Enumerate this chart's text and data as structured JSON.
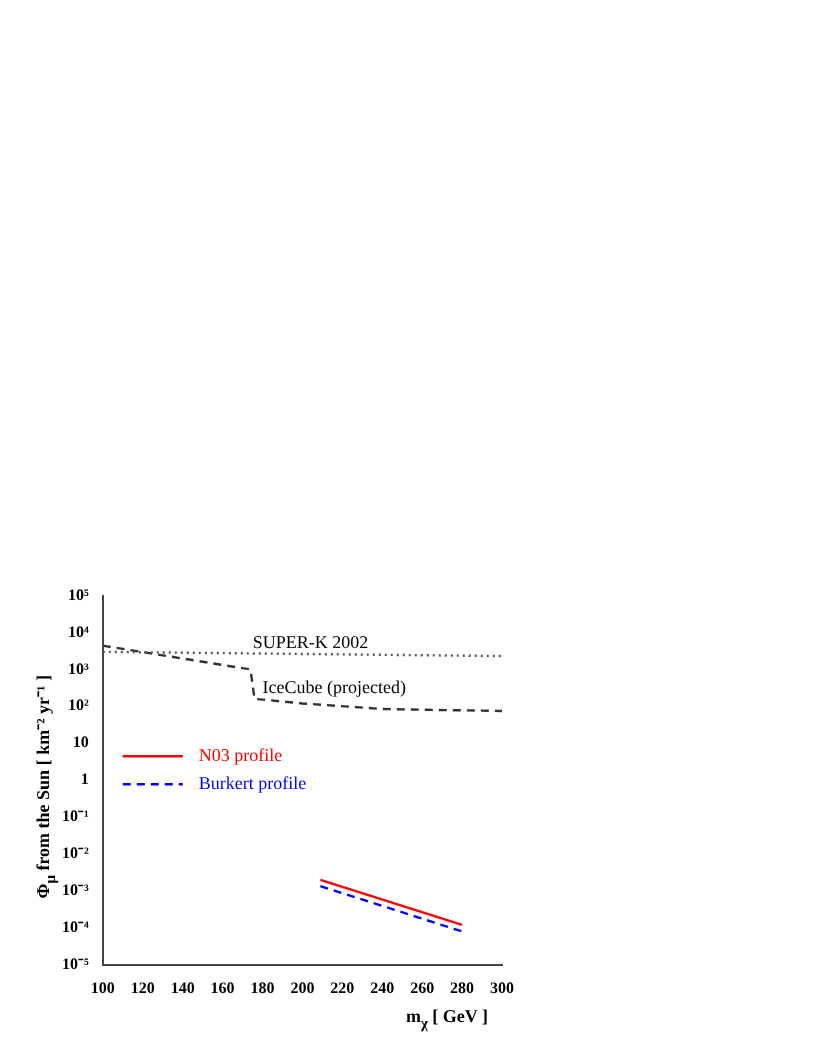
{
  "chart_data": {
    "type": "line",
    "xlabel": "m$_{χ}$ [ GeV ]",
    "ylabel": "Φ$_{μ}$ from the Sun [ km⁻² yr⁻¹ ]",
    "xlim": [
      100,
      300
    ],
    "xticks": [
      100,
      120,
      140,
      160,
      180,
      200,
      220,
      240,
      260,
      280,
      300
    ],
    "ylim": [
      1e-05,
      100000
    ],
    "log": true,
    "yticks": [
      {
        "value": 1e-05,
        "label": "10⁻⁵"
      },
      {
        "value": 0.0001,
        "label": "10⁻⁴"
      },
      {
        "value": 0.001,
        "label": "10⁻³"
      },
      {
        "value": 0.01,
        "label": "10⁻²"
      },
      {
        "value": 0.1,
        "label": "10⁻¹"
      },
      {
        "value": 1,
        "label": "1"
      },
      {
        "value": 10,
        "label": "10"
      },
      {
        "value": 100,
        "label": "10²"
      },
      {
        "value": 1000,
        "label": "10³"
      },
      {
        "value": 10000,
        "label": "10⁴"
      },
      {
        "value": 100000,
        "label": "10⁵"
      }
    ],
    "grid": false,
    "legend": "left",
    "series": [
      {
        "color": "#555555",
        "line_style": "dotted",
        "x": [
          100,
          300
        ],
        "values": [
          3000,
          2300
        ]
      },
      {
        "color": "#333333",
        "line_style": "dashed",
        "x": [
          100,
          174,
          176,
          200,
          240,
          280,
          300
        ],
        "values": [
          4400,
          1000,
          160,
          120,
          85,
          78,
          75
        ]
      },
      {
        "name": "N03 profile",
        "color": "#ff0000",
        "line_style": "solid",
        "x": [
          209,
          280
        ],
        "values": [
          0.002,
          0.00012
        ]
      },
      {
        "name": "Burkert profile",
        "color": "#0000ff",
        "line_style": "dashed",
        "x": [
          209,
          280
        ],
        "values": [
          0.00135,
          8e-05
        ]
      }
    ],
    "annotations": [
      "SUPER-K 2002",
      "IceCube (projected)"
    ]
  }
}
